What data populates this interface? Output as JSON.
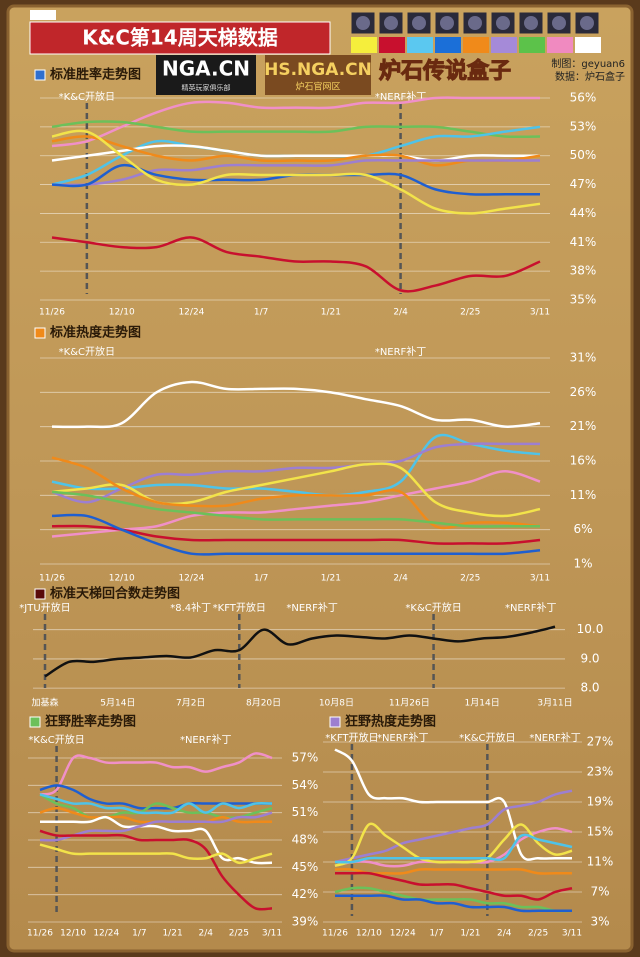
{
  "header": {
    "title": "K&C第14周天梯数据",
    "logos": [
      "NGA.CN",
      "HS.NGA.CN",
      "炉石传说盒子"
    ],
    "logo_subtitle": "精英玩家俱乐部",
    "logo_badge": "炉石官网区",
    "credits": [
      "制图：geyuan6",
      "数据：炉石盒子"
    ],
    "legend_colors": [
      "#f5ee3c",
      "#c8102e",
      "#5bc8f0",
      "#1b6fd8",
      "#f08a1a",
      "#a58ad8",
      "#5cc24a",
      "#f08ac0",
      "#ffffff"
    ]
  },
  "chart_data": [
    {
      "type": "line",
      "title": "标准胜率走势图",
      "title_color": "#2f6fd0",
      "categories": [
        "11/26",
        null,
        "12/10",
        null,
        "12/24",
        null,
        "1/7",
        null,
        "1/21",
        null,
        "2/4",
        null,
        "2/25",
        null,
        "3/11"
      ],
      "ylim": [
        35,
        56
      ],
      "yticks": [
        {
          "value": 56,
          "label": "56%"
        },
        {
          "value": 53,
          "label": "53%"
        },
        {
          "value": 50,
          "label": "50%"
        },
        {
          "value": 47,
          "label": "47%"
        },
        {
          "value": 44,
          "label": "44%"
        },
        {
          "value": 41,
          "label": "41%"
        },
        {
          "value": 38,
          "label": "38%"
        },
        {
          "value": 35,
          "label": "35%"
        }
      ],
      "grid": true,
      "annotations": [
        {
          "text": "*K&C开放日",
          "x": 1,
          "line": true
        },
        {
          "text": "*NERF补丁",
          "x": 10,
          "line": true
        }
      ],
      "series": [
        {
          "color": "#f090c8",
          "values": [
            51,
            51.5,
            53,
            54.5,
            55.5,
            55.5,
            55,
            55,
            55,
            55.5,
            55.5,
            56,
            56,
            56,
            56
          ]
        },
        {
          "color": "#6cc05a",
          "values": [
            53,
            53.5,
            53.5,
            53,
            52.5,
            52.5,
            52.5,
            52.5,
            52.5,
            53,
            53,
            53,
            52.5,
            52,
            52
          ]
        },
        {
          "color": "#4fc3e8",
          "values": [
            47,
            48,
            50,
            51.5,
            51,
            50.5,
            50,
            50,
            50,
            50,
            51,
            52,
            52,
            52.5,
            53
          ]
        },
        {
          "color": "#c8102e",
          "values": [
            41.5,
            41,
            40.5,
            40.5,
            41.5,
            40,
            39.5,
            39,
            39,
            38.5,
            36,
            36.5,
            37.5,
            37.5,
            39
          ]
        },
        {
          "color": "#ffffff",
          "values": [
            49.5,
            50,
            50.5,
            51,
            51,
            50.5,
            50,
            50,
            50,
            50,
            50,
            49.5,
            50,
            50,
            50
          ]
        },
        {
          "color": "#f08a1a",
          "values": [
            51.5,
            52,
            51,
            50,
            49.5,
            50,
            49.5,
            49.5,
            49.5,
            50,
            50,
            49,
            49.5,
            49.5,
            50
          ]
        },
        {
          "color": "#9d7fd0",
          "values": [
            47,
            47,
            47.5,
            48.5,
            48.5,
            49,
            49,
            49,
            49,
            49.5,
            49.5,
            49.5,
            49.5,
            49.5,
            49.5
          ]
        },
        {
          "color": "#1f5fd0",
          "values": [
            47,
            47,
            49,
            48,
            47.5,
            47.5,
            47.5,
            48,
            48,
            48,
            48,
            46.5,
            46,
            46,
            46
          ]
        },
        {
          "color": "#f2e34a",
          "values": [
            52,
            52.5,
            50,
            47.5,
            47,
            48,
            48,
            48,
            48,
            48,
            46.5,
            44.5,
            44,
            44.5,
            45
          ]
        }
      ]
    },
    {
      "type": "line",
      "title": "标准热度走势图",
      "title_color": "#f08a1a",
      "categories": [
        "11/26",
        null,
        "12/10",
        null,
        "12/24",
        null,
        "1/7",
        null,
        "1/21",
        null,
        "2/4",
        null,
        "2/25",
        null,
        "3/11"
      ],
      "ylim": [
        1,
        31
      ],
      "yticks": [
        {
          "value": 31,
          "label": "31%"
        },
        {
          "value": 26,
          "label": "26%"
        },
        {
          "value": 21,
          "label": "21%"
        },
        {
          "value": 16,
          "label": "16%"
        },
        {
          "value": 11,
          "label": "11%"
        },
        {
          "value": 6,
          "label": "6%"
        },
        {
          "value": 1,
          "label": "1%"
        }
      ],
      "grid": true,
      "annotations": [
        {
          "text": "*K&C开放日",
          "x": 1,
          "line": false
        },
        {
          "text": "*NERF补丁",
          "x": 10,
          "line": false
        }
      ],
      "series": [
        {
          "color": "#ffffff",
          "values": [
            21,
            21,
            21.5,
            26,
            27.5,
            26.5,
            26.5,
            26.5,
            26,
            25,
            24,
            22,
            22,
            21,
            21.5
          ]
        },
        {
          "color": "#4fc3e8",
          "values": [
            13,
            12,
            12,
            12.5,
            12.5,
            12,
            12,
            11.5,
            11,
            11.5,
            13,
            19.5,
            18.5,
            17.5,
            17
          ]
        },
        {
          "color": "#9d7fd0",
          "values": [
            11.5,
            10,
            12,
            14,
            14,
            14.5,
            14.5,
            15,
            15,
            15.5,
            16,
            18,
            18.5,
            18.5,
            18.5
          ]
        },
        {
          "color": "#f090c8",
          "values": [
            5,
            5.5,
            6,
            6.5,
            8,
            8.5,
            8.5,
            9,
            9.5,
            10,
            11,
            12,
            13,
            14.5,
            13
          ]
        },
        {
          "color": "#f2e34a",
          "values": [
            11.5,
            12,
            12.5,
            10,
            10,
            11.5,
            12.5,
            13.5,
            14.5,
            15.5,
            15,
            10,
            8.5,
            8,
            9
          ]
        },
        {
          "color": "#f08a1a",
          "values": [
            16.5,
            15,
            12,
            10,
            9.5,
            9.5,
            10.5,
            11,
            11,
            11,
            11.5,
            6.5,
            7,
            7,
            6.5
          ]
        },
        {
          "color": "#6cc05a",
          "values": [
            11.5,
            11,
            10,
            9,
            8.5,
            8,
            7.5,
            7.5,
            7.5,
            7.5,
            7.5,
            7,
            6.5,
            6.5,
            6.5
          ]
        },
        {
          "color": "#c8102e",
          "values": [
            6.5,
            6.5,
            6,
            5,
            4.5,
            4.5,
            4.5,
            4.5,
            4.5,
            4.5,
            4.5,
            4,
            4,
            4,
            4.5
          ]
        },
        {
          "color": "#1f5fd0",
          "values": [
            8,
            8,
            6,
            4,
            2.5,
            2.5,
            2.5,
            2.5,
            2.5,
            2.5,
            2.5,
            2.5,
            2.5,
            2.5,
            3
          ]
        }
      ]
    },
    {
      "type": "line",
      "title": "标准天梯回合数走势图",
      "title_color": "#5a0a0a",
      "categories": [
        "加基森",
        null,
        null,
        "5月14日",
        null,
        null,
        "7月2日",
        null,
        null,
        "8月20日",
        null,
        null,
        "10月8日",
        null,
        null,
        "11月26日",
        null,
        null,
        "1月14日",
        null,
        null,
        "3月11日"
      ],
      "ylim": [
        7.8,
        10.4
      ],
      "yticks": [
        {
          "value": 10,
          "label": "10.0"
        },
        {
          "value": 9,
          "label": "9.0"
        },
        {
          "value": 8,
          "label": "8.0"
        }
      ],
      "grid": true,
      "annotations": [
        {
          "text": "*JTU开放日",
          "x": 0,
          "line": true
        },
        {
          "text": "*8.4补丁",
          "x": 6,
          "line": false
        },
        {
          "text": "*KFT开放日",
          "x": 8,
          "line": true
        },
        {
          "text": "*NERF补丁",
          "x": 11,
          "line": false
        },
        {
          "text": "*K&C开放日",
          "x": 16,
          "line": true
        },
        {
          "text": "*NERF补丁",
          "x": 20,
          "line": false
        }
      ],
      "series": [
        {
          "color": "#111111",
          "values": [
            8.4,
            8.9,
            8.9,
            9.0,
            9.05,
            9.1,
            9.05,
            9.3,
            9.3,
            10.0,
            9.5,
            9.7,
            9.8,
            9.75,
            9.7,
            9.8,
            9.7,
            9.6,
            9.7,
            9.75,
            9.9,
            10.1
          ]
        }
      ]
    },
    {
      "type": "line",
      "title": "狂野胜率走势图",
      "title_color": "#6cc05a",
      "categories": [
        "11/26",
        null,
        "12/10",
        null,
        "12/24",
        null,
        "1/7",
        null,
        "1/21",
        null,
        "2/4",
        null,
        "2/25",
        null,
        "3/11"
      ],
      "ylim": [
        39,
        57
      ],
      "yticks": [
        {
          "value": 57,
          "label": "57%"
        },
        {
          "value": 54,
          "label": "54%"
        },
        {
          "value": 51,
          "label": "51%"
        },
        {
          "value": 48,
          "label": "48%"
        },
        {
          "value": 45,
          "label": "45%"
        },
        {
          "value": 42,
          "label": "42%"
        },
        {
          "value": 39,
          "label": "39%"
        }
      ],
      "grid": true,
      "annotations": [
        {
          "text": "*K&C开放日",
          "x": 1,
          "line": true
        },
        {
          "text": "*NERF补丁",
          "x": 10,
          "line": false
        }
      ],
      "series": [
        {
          "color": "#f090c8",
          "values": [
            53,
            53.5,
            57,
            57,
            56.5,
            56.5,
            56.5,
            56.5,
            56,
            56,
            55.5,
            56,
            56.5,
            57.5,
            57
          ]
        },
        {
          "color": "#1f5fd0",
          "values": [
            53.5,
            54,
            53.5,
            52.5,
            52,
            52,
            51.5,
            51.5,
            51.5,
            52,
            52,
            52,
            52,
            52,
            52
          ]
        },
        {
          "color": "#6cc05a",
          "values": [
            53,
            52,
            51.5,
            50.5,
            50.5,
            51,
            51,
            52,
            51.5,
            51,
            51,
            50.5,
            50.5,
            51,
            51.5
          ]
        },
        {
          "color": "#4fc3e8",
          "values": [
            53,
            52.5,
            52,
            52,
            51.5,
            51.5,
            51,
            51,
            51,
            52,
            51,
            52,
            51.5,
            52,
            52
          ]
        },
        {
          "color": "#f08a1a",
          "values": [
            51,
            51.5,
            51,
            50.5,
            50.5,
            50.5,
            50,
            50,
            50,
            50,
            50,
            50.5,
            50,
            50,
            50
          ]
        },
        {
          "color": "#ffffff",
          "values": [
            50,
            50,
            50,
            50,
            50.5,
            49.5,
            49.5,
            49.5,
            49,
            49,
            49,
            46,
            46,
            45.5,
            45.5
          ]
        },
        {
          "color": "#9d7fd0",
          "values": [
            48,
            48,
            48.5,
            49,
            49,
            49,
            49.5,
            50,
            50,
            50,
            50,
            50,
            50.5,
            50.5,
            51
          ]
        },
        {
          "color": "#c8102e",
          "values": [
            49,
            48.5,
            48.5,
            48.5,
            48.5,
            48.5,
            48,
            48,
            48,
            48,
            47,
            44,
            42,
            40.5,
            40.5
          ]
        },
        {
          "color": "#f2e34a",
          "values": [
            47.5,
            47,
            46.5,
            46.5,
            46.5,
            46.5,
            46.5,
            46.5,
            46.5,
            46,
            46,
            46.5,
            45.5,
            46,
            46.5
          ]
        }
      ]
    },
    {
      "type": "line",
      "title": "狂野热度走势图",
      "title_color": "#9d7fd0",
      "categories": [
        "11/26",
        null,
        "12/10",
        null,
        "12/24",
        null,
        "1/7",
        null,
        "1/21",
        null,
        "2/4",
        null,
        "2/25",
        null,
        "3/11"
      ],
      "ylim": [
        3,
        27
      ],
      "yticks": [
        {
          "value": 27,
          "label": "27%"
        },
        {
          "value": 23,
          "label": "23%"
        },
        {
          "value": 19,
          "label": "19%"
        },
        {
          "value": 15,
          "label": "15%"
        },
        {
          "value": 11,
          "label": "11%"
        },
        {
          "value": 7,
          "label": "7%"
        },
        {
          "value": 3,
          "label": "3%"
        }
      ],
      "grid": true,
      "annotations": [
        {
          "text": "*KFT开放日",
          "x": 1,
          "line": true
        },
        {
          "text": "*NERF补丁",
          "x": 4,
          "line": false
        },
        {
          "text": "*K&C开放日",
          "x": 9,
          "line": true
        },
        {
          "text": "*NERF补丁",
          "x": 13,
          "line": false
        }
      ],
      "series": [
        {
          "color": "#ffffff",
          "values": [
            26,
            24.5,
            20,
            19.5,
            19.5,
            19,
            19,
            19,
            19,
            19,
            19,
            12,
            11.5,
            11.5,
            11.5
          ]
        },
        {
          "color": "#9d7fd0",
          "values": [
            11,
            11.5,
            12,
            12.5,
            13.5,
            14,
            14.5,
            15,
            15.5,
            16,
            18,
            18.5,
            19,
            20,
            20.5
          ]
        },
        {
          "color": "#f090c8",
          "values": [
            10.5,
            11,
            11,
            10.5,
            10.5,
            11,
            11,
            11,
            11,
            11,
            12,
            14,
            15,
            15.5,
            15
          ]
        },
        {
          "color": "#f2e34a",
          "values": [
            10.5,
            11.5,
            16,
            14.5,
            13,
            11.5,
            11,
            11,
            11,
            11.5,
            14,
            16,
            13.5,
            12,
            12.5
          ]
        },
        {
          "color": "#4fc3e8",
          "values": [
            11,
            11,
            11.5,
            11.5,
            11.5,
            11.5,
            11.5,
            11.5,
            11.5,
            11.5,
            11.5,
            14.5,
            14,
            13.5,
            13
          ]
        },
        {
          "color": "#f08a1a",
          "values": [
            10,
            10,
            9.5,
            9.5,
            9.5,
            10,
            10,
            10,
            10,
            10,
            10,
            10,
            9.5,
            9.5,
            9.5
          ]
        },
        {
          "color": "#c8102e",
          "values": [
            9.5,
            9.5,
            9.5,
            9,
            8.5,
            8,
            8,
            8,
            7.5,
            7,
            6.5,
            6.5,
            6,
            7,
            7.5
          ]
        },
        {
          "color": "#6cc05a",
          "values": [
            7,
            7.5,
            7.5,
            7,
            6.5,
            6,
            6,
            6,
            6,
            5.5,
            5.5,
            5,
            5,
            4.5,
            4.5
          ]
        },
        {
          "color": "#1f5fd0",
          "values": [
            6.5,
            6.5,
            6.5,
            6.5,
            6,
            6,
            5.5,
            5.5,
            5,
            5,
            5,
            4.5,
            4.5,
            4.5,
            4.5
          ]
        }
      ]
    }
  ]
}
